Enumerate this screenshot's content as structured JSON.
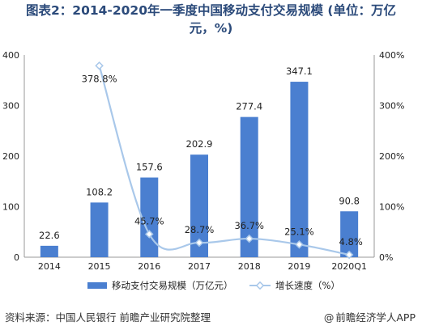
{
  "title_line1": "图表2：2014-2020年一季度中国移动支付交易规模 (单位：万亿",
  "title_line2": "元，%)",
  "source": "资料来源：中国人民银行 前瞻产业研究院整理",
  "brand": "前瞻经济学人APP",
  "brand_icon": "at-sign-icon",
  "colors": {
    "bar": "#4a7fd0",
    "line": "#a9c8ea",
    "title": "#2b4a7a"
  },
  "chart_data": {
    "type": "bar",
    "categories": [
      "2014",
      "2015",
      "2016",
      "2017",
      "2018",
      "2019",
      "2020Q1"
    ],
    "series": [
      {
        "name": "移动支付交易规模（万亿元）",
        "type": "bar",
        "axis": "left",
        "values": [
          22.6,
          108.2,
          157.6,
          202.9,
          277.4,
          347.1,
          90.8
        ],
        "labels": [
          "22.6",
          "108.2",
          "157.6",
          "202.9",
          "277.4",
          "347.1",
          "90.8"
        ]
      },
      {
        "name": "增长速度（%）",
        "type": "line",
        "axis": "right",
        "values": [
          null,
          378.8,
          45.7,
          28.7,
          36.7,
          25.1,
          4.8
        ],
        "labels": [
          "",
          "378.8%",
          "45.7%",
          "28.7%",
          "36.7%",
          "25.1%",
          "4.8%"
        ]
      }
    ],
    "y_left": {
      "lim": [
        0,
        400
      ],
      "ticks": [
        "0",
        "100",
        "200",
        "300",
        "400"
      ]
    },
    "y_right": {
      "lim": [
        0,
        400
      ],
      "ticks": [
        "0%",
        "100%",
        "200%",
        "300%",
        "400%"
      ]
    },
    "grid": false,
    "legend": "bottom"
  }
}
